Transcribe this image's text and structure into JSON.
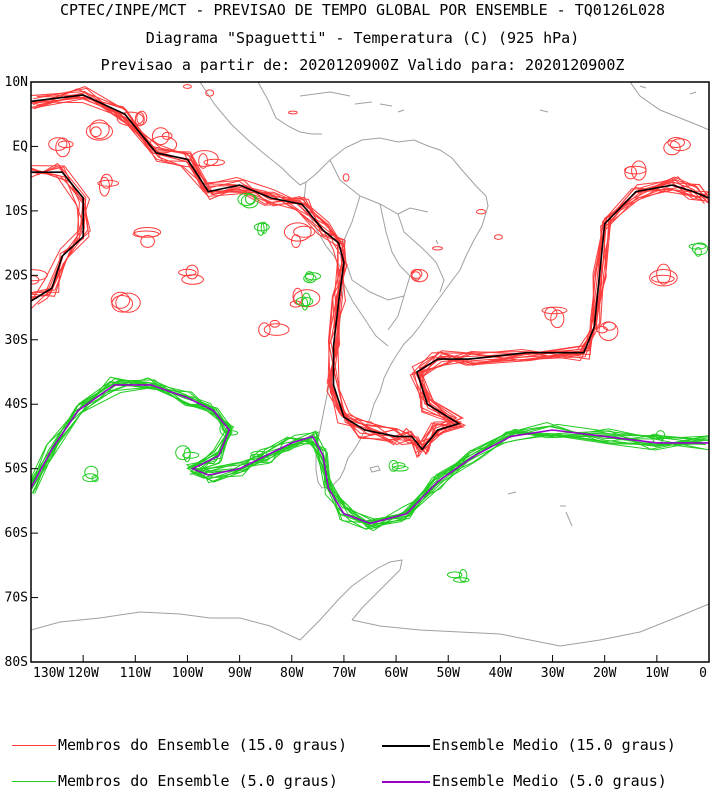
{
  "header": {
    "line1": "CPTEC/INPE/MCT - PREVISAO DE TEMPO GLOBAL POR ENSEMBLE - TQ0126L028",
    "line2": "Diagrama \"Spaguetti\" - Temperatura (C) (925 hPa)",
    "line3": "Previsao a partir de: 2020120900Z  Valido para: 2020120900Z"
  },
  "axes": {
    "lat_labels": [
      "10N",
      "EQ",
      "10S",
      "20S",
      "30S",
      "40S",
      "50S",
      "60S",
      "70S",
      "80S"
    ],
    "lat_values": [
      10,
      0,
      -10,
      -20,
      -30,
      -40,
      -50,
      -60,
      -70,
      -80
    ],
    "lon_labels": [
      "130W",
      "120W",
      "110W",
      "100W",
      "90W",
      "80W",
      "70W",
      "60W",
      "50W",
      "40W",
      "30W",
      "20W",
      "10W",
      "0"
    ],
    "lon_values": [
      -130,
      -120,
      -110,
      -100,
      -90,
      -80,
      -70,
      -60,
      -50,
      -40,
      -30,
      -20,
      -10,
      0
    ],
    "lon_range": [
      -130,
      0
    ],
    "lat_range": [
      -80,
      10
    ]
  },
  "legend": {
    "red_members": "Membros do Ensemble (15.0 graus)",
    "black_mean": "Ensemble Medio (15.0 graus)",
    "green_members": "Membros do Ensemble (5.0 graus)",
    "purple_mean": "Ensemble Medio (5.0 graus)"
  },
  "colors": {
    "red": "#ff3b3b",
    "black": "#000000",
    "green": "#22cc22",
    "purple": "#9900cc",
    "coast": "#a0a0a0"
  },
  "chart_data": {
    "type": "spaghetti-contour",
    "variable": "Temperatura (C) (925 hPa)",
    "series": [
      {
        "name": "Ensemble Medio (15.0 graus)",
        "color": "#000000",
        "points": [
          [
            -130,
            7
          ],
          [
            -120,
            8
          ],
          [
            -112,
            5
          ],
          [
            -106,
            -1
          ],
          [
            -100,
            -2
          ],
          [
            -96,
            -7
          ],
          [
            -90,
            -6
          ],
          [
            -84,
            -8
          ],
          [
            -78,
            -9
          ],
          [
            -74,
            -13
          ],
          [
            -71,
            -15
          ],
          [
            -70,
            -18
          ],
          [
            -71,
            -24
          ],
          [
            -72,
            -31
          ],
          [
            -72,
            -37
          ],
          [
            -70,
            -42
          ],
          [
            -66,
            -44
          ],
          [
            -60,
            -45
          ],
          [
            -57,
            -45
          ],
          [
            -55,
            -47
          ],
          [
            -52,
            -44
          ],
          [
            -48,
            -43
          ],
          [
            -54,
            -40
          ],
          [
            -56,
            -35
          ],
          [
            -52,
            -33
          ],
          [
            -46,
            -33
          ],
          [
            -35,
            -32
          ],
          [
            -24,
            -32
          ],
          [
            -22,
            -28
          ],
          [
            -21,
            -20
          ],
          [
            -20,
            -12
          ],
          [
            -14,
            -7
          ],
          [
            -7,
            -6
          ],
          [
            -3,
            -7
          ],
          [
            0,
            -8
          ]
        ]
      },
      {
        "name": "Ensemble Medio (15.0 graus)",
        "color": "#000000",
        "points": [
          [
            -130,
            -4
          ],
          [
            -124,
            -4
          ],
          [
            -120,
            -8
          ],
          [
            -120,
            -14
          ],
          [
            -124,
            -17
          ],
          [
            -126,
            -22
          ],
          [
            -130,
            -24
          ]
        ]
      },
      {
        "name": "Ensemble Medio (5.0 graus)",
        "color": "#9900cc",
        "points": [
          [
            -130,
            -53
          ],
          [
            -126,
            -47
          ],
          [
            -121,
            -41
          ],
          [
            -114,
            -37
          ],
          [
            -107,
            -37
          ],
          [
            -100,
            -39
          ],
          [
            -95,
            -41
          ],
          [
            -92,
            -44
          ],
          [
            -94,
            -48
          ],
          [
            -99,
            -50
          ],
          [
            -96,
            -51
          ],
          [
            -90,
            -50
          ],
          [
            -85,
            -48
          ],
          [
            -80,
            -46
          ],
          [
            -76,
            -45
          ],
          [
            -74,
            -48
          ],
          [
            -73,
            -53
          ],
          [
            -70,
            -57
          ],
          [
            -65,
            -58.5
          ],
          [
            -58,
            -57
          ],
          [
            -52,
            -52
          ],
          [
            -45,
            -48
          ],
          [
            -38,
            -45
          ],
          [
            -30,
            -44
          ],
          [
            -20,
            -45
          ],
          [
            -10,
            -46
          ],
          [
            0,
            -46
          ]
        ]
      }
    ]
  }
}
